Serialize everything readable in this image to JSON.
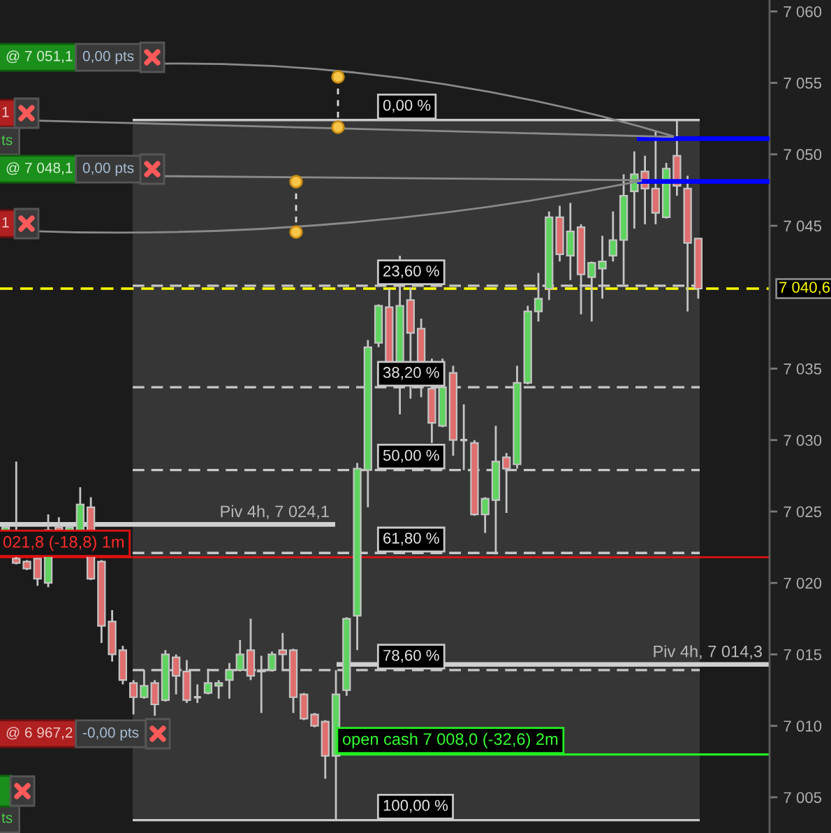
{
  "chart_data": {
    "type": "candlestick",
    "categories": [
      null,
      null,
      null,
      null,
      null,
      null,
      null,
      null,
      null,
      null,
      null,
      null,
      null,
      null,
      null,
      null,
      null,
      null,
      null,
      null,
      null,
      null,
      null,
      null,
      null,
      null,
      null,
      null,
      null,
      null,
      null,
      null,
      null,
      null,
      null,
      null,
      null,
      null,
      null,
      null,
      null,
      null,
      null,
      null,
      null,
      null,
      null,
      null,
      null,
      null,
      null,
      null,
      null,
      null,
      null,
      null,
      null,
      null,
      null,
      null,
      null,
      null,
      null,
      null,
      null,
      null
    ],
    "ohlc": [
      [
        7023.5,
        7024.0,
        7023.5,
        7023.9
      ],
      [
        7021.7,
        7028.5,
        7021.3,
        7021.4
      ],
      [
        7021.5,
        7021.6,
        7020.9,
        7021.0
      ],
      [
        7021.7,
        7021.7,
        7019.8,
        7020.3
      ],
      [
        7020.0,
        7024.8,
        7019.7,
        7023.7
      ],
      [
        7023.9,
        7024.6,
        7023.6,
        7023.7
      ],
      [
        7023.7,
        7024.0,
        7023.6,
        7023.9
      ],
      [
        7023.6,
        7026.7,
        7023.5,
        7025.5
      ],
      [
        7025.3,
        7026.0,
        7020.2,
        7020.3
      ],
      [
        7021.5,
        7021.6,
        7015.8,
        7017.0
      ],
      [
        7017.3,
        7018.1,
        7014.5,
        7015.0
      ],
      [
        7015.3,
        7015.6,
        7012.9,
        7013.2
      ],
      [
        7013.0,
        7013.2,
        7010.8,
        7012.0
      ],
      [
        7012.0,
        7013.9,
        7011.9,
        7012.8
      ],
      [
        7013.0,
        7013.2,
        7010.7,
        7011.5
      ],
      [
        7011.8,
        7015.3,
        7011.7,
        7015.0
      ],
      [
        7014.8,
        7015.0,
        7012.2,
        7013.5
      ],
      [
        7013.8,
        7014.6,
        7011.6,
        7011.8
      ],
      [
        7012.0,
        7012.9,
        7011.6,
        7012.0
      ],
      [
        7012.3,
        7014.0,
        7012.2,
        7013.0
      ],
      [
        7012.8,
        7013.2,
        7011.9,
        7013.0
      ],
      [
        7013.2,
        7014.4,
        7011.9,
        7013.9
      ],
      [
        7013.9,
        7016.0,
        7013.8,
        7015.0
      ],
      [
        7015.3,
        7017.5,
        7013.2,
        7013.5
      ],
      [
        7013.9,
        7014.9,
        7010.9,
        7013.8
      ],
      [
        7013.9,
        7015.2,
        7013.8,
        7015.0
      ],
      [
        7015.3,
        7016.5,
        7013.9,
        7015.0
      ],
      [
        7015.3,
        7015.4,
        7010.9,
        7012.0
      ],
      [
        7012.2,
        7012.3,
        7010.4,
        7010.5
      ],
      [
        7010.8,
        7010.9,
        7009.9,
        7010.0
      ],
      [
        7010.3,
        7010.4,
        7006.3,
        7007.9
      ],
      [
        7007.9,
        7013.9,
        7003.4,
        7012.2
      ],
      [
        7012.5,
        7017.6,
        7012.1,
        7017.5
      ],
      [
        7017.7,
        7028.4,
        7015.3,
        7028.0
      ],
      [
        7027.9,
        7037.0,
        7025.3,
        7036.5
      ],
      [
        7036.8,
        7039.5,
        7036.5,
        7039.4
      ],
      [
        7039.3,
        7040.6,
        7035.4,
        7035.4
      ],
      [
        7035.4,
        7042.9,
        7031.8,
        7039.4
      ],
      [
        7039.8,
        7040.7,
        7032.9,
        7037.5
      ],
      [
        7037.8,
        7038.5,
        7033.0,
        7035.4
      ],
      [
        7033.6,
        7035.7,
        7029.8,
        7031.2
      ],
      [
        7031.0,
        7035.7,
        7030.9,
        7033.7
      ],
      [
        7034.7,
        7035.2,
        7028.9,
        7030.0
      ],
      [
        7030.0,
        7032.5,
        7027.9,
        7030.0
      ],
      [
        7029.8,
        7030.0,
        7024.7,
        7024.8
      ],
      [
        7024.8,
        7026.0,
        7023.5,
        7025.9
      ],
      [
        7025.8,
        7031.0,
        7022.0,
        7028.5
      ],
      [
        7028.8,
        7029.1,
        7024.9,
        7028.0
      ],
      [
        7028.3,
        7035.2,
        7028.0,
        7034.0
      ],
      [
        7034.0,
        7039.4,
        7033.9,
        7039.0
      ],
      [
        7039.0,
        7041.7,
        7038.3,
        7039.9
      ],
      [
        7040.6,
        7046.0,
        7039.8,
        7045.6
      ],
      [
        7045.6,
        7046.4,
        7042.5,
        7043.0
      ],
      [
        7042.9,
        7046.6,
        7041.2,
        7044.6
      ],
      [
        7044.9,
        7045.1,
        7038.8,
        7041.6
      ],
      [
        7041.4,
        7042.5,
        7038.3,
        7042.4
      ],
      [
        7042.0,
        7044.3,
        7039.9,
        7042.5
      ],
      [
        7042.9,
        7046.0,
        7042.5,
        7044.0
      ],
      [
        7044.0,
        7048.6,
        7040.9,
        7047.1
      ],
      [
        7047.4,
        7050.2,
        7044.8,
        7048.6
      ],
      [
        7048.8,
        7049.9,
        7045.1,
        7047.6
      ],
      [
        7047.6,
        7051.6,
        7045.1,
        7045.9
      ],
      [
        7045.6,
        7049.4,
        7045.5,
        7049.0
      ],
      [
        7049.9,
        7052.4,
        7047.1,
        7047.8
      ],
      [
        7047.6,
        7048.5,
        7039.0,
        7043.8
      ],
      [
        7044.1,
        7044.1,
        7039.9,
        7040.6
      ]
    ],
    "colors": [
      "#5fd35f",
      "#e06e6e",
      "#e06e6e",
      "#e06e6e",
      "#5fd35f",
      "#e06e6e",
      "#5fd35f",
      "#5fd35f",
      "#e06e6e",
      "#e06e6e",
      "#e06e6e",
      "#e06e6e",
      "#e06e6e",
      "#5fd35f",
      "#e06e6e",
      "#5fd35f",
      "#e06e6e",
      "#e06e6e",
      "#c4c4c4",
      "#5fd35f",
      "#5fd35f",
      "#5fd35f",
      "#5fd35f",
      "#e06e6e",
      "#e06e6e",
      "#5fd35f",
      "#e06e6e",
      "#e06e6e",
      "#e06e6e",
      "#e06e6e",
      "#e06e6e",
      "#5fd35f",
      "#5fd35f",
      "#5fd35f",
      "#5fd35f",
      "#5fd35f",
      "#e06e6e",
      "#5fd35f",
      "#e06e6e",
      "#e06e6e",
      "#e06e6e",
      "#5fd35f",
      "#e06e6e",
      "#c4c4c4",
      "#e06e6e",
      "#5fd35f",
      "#5fd35f",
      "#e06e6e",
      "#5fd35f",
      "#5fd35f",
      "#5fd35f",
      "#5fd35f",
      "#e06e6e",
      "#5fd35f",
      "#e06e6e",
      "#5fd35f",
      "#5fd35f",
      "#5fd35f",
      "#5fd35f",
      "#5fd35f",
      "#e06e6e",
      "#e06e6e",
      "#5fd35f",
      "#e06e6e",
      "#e06e6e",
      "#e06e6e"
    ],
    "ylim": [
      7002.5,
      7060.8
    ],
    "yticks": [
      {
        "value": 7005,
        "label": "7 005"
      },
      {
        "value": 7010,
        "label": "7 010"
      },
      {
        "value": 7015,
        "label": "7 015"
      },
      {
        "value": 7020,
        "label": "7 020"
      },
      {
        "value": 7025,
        "label": "7 025"
      },
      {
        "value": 7030,
        "label": "7 030"
      },
      {
        "value": 7035,
        "label": "7 035"
      },
      {
        "value": 7045,
        "label": "7 045"
      },
      {
        "value": 7050,
        "label": "7 050"
      },
      {
        "value": 7055,
        "label": "7 055"
      },
      {
        "value": 7060,
        "label": "7 060"
      }
    ],
    "tick_labels": "y",
    "bands": [
      {
        "axis": "y",
        "from": 7003.4,
        "to": 7052.4,
        "color": "#363636"
      }
    ],
    "ref_lines": [
      {
        "axis": "y",
        "value": 7052.4,
        "color": "#c8c8c8",
        "line_style": "solid"
      },
      {
        "axis": "y",
        "value": 7040.8,
        "color": "#c8c8c8",
        "line_style": "dashed"
      },
      {
        "axis": "y",
        "value": 7033.7,
        "color": "#c8c8c8",
        "line_style": "dashed"
      },
      {
        "axis": "y",
        "value": 7027.9,
        "color": "#c8c8c8",
        "line_style": "dashed"
      },
      {
        "axis": "y",
        "value": 7022.1,
        "color": "#c8c8c8",
        "line_style": "dashed"
      },
      {
        "axis": "y",
        "value": 7013.9,
        "color": "#c8c8c8",
        "line_style": "dashed"
      },
      {
        "axis": "y",
        "value": 7003.4,
        "color": "#c8c8c8",
        "line_style": "solid"
      },
      {
        "axis": "y",
        "value": 7024.1,
        "label": "Piv 4h, 7 024,1",
        "color": "#d0d0d0",
        "line_style": "solid"
      },
      {
        "axis": "y",
        "value": 7014.3,
        "label": "Piv 4h, 7 014,3",
        "color": "#d0d0d0",
        "line_style": "solid"
      },
      {
        "axis": "y",
        "value": 7021.8,
        "label": "021,8 (-18,8) 1m",
        "color": "#e01010",
        "line_style": "solid"
      },
      {
        "axis": "y",
        "value": 7008.0,
        "label": "open cash 7 008,0 (-32,6) 2m",
        "color": "#22ee22",
        "line_style": "solid"
      },
      {
        "axis": "y",
        "value": 7040.6,
        "label": "7 040,6",
        "color": "#ffff00",
        "line_style": "dashed"
      },
      {
        "axis": "y",
        "value": 7051.1,
        "color": "#0000ff",
        "line_style": "solid"
      },
      {
        "axis": "y",
        "value": 7048.1,
        "color": "#0000ff",
        "line_style": "solid"
      }
    ],
    "annotations": [
      {
        "text": "0,00 %",
        "y": 7052.4
      },
      {
        "text": "23,60 %",
        "y": 7040.8
      },
      {
        "text": "38,20 %",
        "y": 7033.7
      },
      {
        "text": "50,00 %",
        "y": 7027.9
      },
      {
        "text": "61,80 %",
        "y": 7022.1
      },
      {
        "text": "78,60 %",
        "y": 7013.9
      },
      {
        "text": "100,00 %",
        "y": 7003.4
      },
      "@ 7 051,1",
      "0,00 pts",
      "1",
      "ts",
      "@ 7 048,1",
      "0,00 pts",
      "1",
      "@ 6 967,2",
      "-0,00 pts",
      "ts"
    ]
  }
}
